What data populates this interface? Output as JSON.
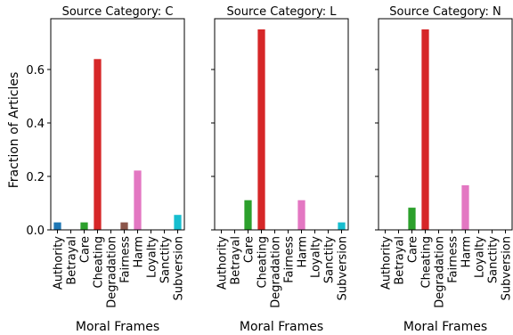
{
  "chart_data": {
    "type": "bar",
    "ylabel": "Fraction of Articles",
    "xlabel": "Moral Frames",
    "ylim": [
      0,
      0.79
    ],
    "yticks": [
      0.0,
      0.2,
      0.4,
      0.6
    ],
    "ytick_labels": [
      "0.0",
      "0.2",
      "0.4",
      "0.6"
    ],
    "shared_y": true,
    "grid": false,
    "categories": [
      "Authority",
      "Betrayal",
      "Care",
      "Cheating",
      "Degradation",
      "Fairness",
      "Harm",
      "Loyalty",
      "Sanctity",
      "Subversion"
    ],
    "category_colors": [
      "#1f77b4",
      "#ff7f0e",
      "#2ca02c",
      "#d62728",
      "#9467bd",
      "#8c564b",
      "#e377c2",
      "#7f7f7f",
      "#bcbd22",
      "#17becf"
    ],
    "panels": [
      {
        "title": "Source Category: C",
        "values": [
          0.028,
          0.0,
          0.028,
          0.639,
          0.0,
          0.028,
          0.222,
          0.0,
          0.0,
          0.056
        ]
      },
      {
        "title": "Source Category: L",
        "values": [
          0.0,
          0.0,
          0.111,
          0.75,
          0.0,
          0.0,
          0.111,
          0.0,
          0.0,
          0.028
        ]
      },
      {
        "title": "Source Category: N",
        "values": [
          0.0,
          0.0,
          0.083,
          0.75,
          0.0,
          0.0,
          0.167,
          0.0,
          0.0,
          0.0
        ]
      }
    ]
  }
}
